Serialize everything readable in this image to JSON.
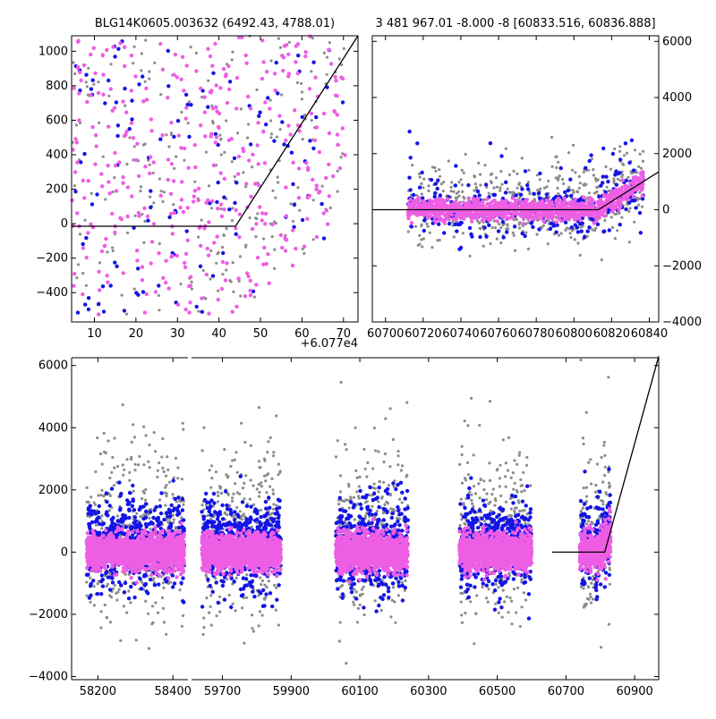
{
  "chart_data": [
    {
      "id": "zoom",
      "type": "scatter",
      "title": "BLG14K0605.003632 (6492.43, 4788.01)",
      "x_offset_label": "+6.077e4",
      "xlim": [
        60774.5,
        60843.5
      ],
      "ylim": [
        -570,
        1090
      ],
      "xticks": [
        10,
        20,
        30,
        40,
        50,
        60,
        70
      ],
      "yticks": [
        -400,
        -200,
        0,
        200,
        400,
        600,
        800,
        1000
      ],
      "x_tick_offset": 60770,
      "model": {
        "x": [
          60774.5,
          60814.0,
          60843.5
        ],
        "y": [
          -15,
          -15,
          1090
        ]
      },
      "series_colors": [
        "#8c8c8c",
        "#1414e6",
        "#ee5ee4"
      ]
    },
    {
      "id": "season",
      "type": "scatter",
      "title": "3 481 967.01 -8.000 -8 [60833.516, 60836.888]",
      "xlim": [
        60693,
        60845
      ],
      "ylim": [
        -4000,
        6200
      ],
      "xticks": [
        60700,
        60720,
        60740,
        60760,
        60780,
        60800,
        60820,
        60840
      ],
      "yticks": [
        -4000,
        -2000,
        0,
        2000,
        4000,
        6000
      ],
      "model": {
        "x": [
          60693,
          60813,
          60845
        ],
        "y": [
          0,
          0,
          1350
        ]
      },
      "series_colors": [
        "#8c8c8c",
        "#1414e6",
        "#ee5ee4"
      ]
    },
    {
      "id": "full",
      "type": "scatter",
      "title": "",
      "ylim": [
        -4100,
        6250
      ],
      "yticks": [
        -4000,
        -2000,
        0,
        2000,
        4000,
        6000
      ],
      "segments": [
        {
          "xlim": [
            58130,
            58440
          ],
          "xticks": [
            58200,
            58400
          ],
          "seasons": [
            [
              58170,
              58430
            ]
          ]
        },
        {
          "xlim": [
            59610,
            60970
          ],
          "xticks": [
            59700,
            59900,
            60100,
            60300,
            60500,
            60700,
            60900
          ],
          "seasons": [
            [
              59640,
              59870
            ],
            [
              60030,
              60240
            ],
            [
              60390,
              60600
            ],
            [
              60740,
              60830
            ]
          ]
        }
      ],
      "model": {
        "x": [
          60660,
          60813,
          60970
        ],
        "y": [
          0,
          0,
          6300
        ]
      },
      "series_colors": [
        "#8c8c8c",
        "#1414e6",
        "#ee5ee4"
      ]
    }
  ]
}
